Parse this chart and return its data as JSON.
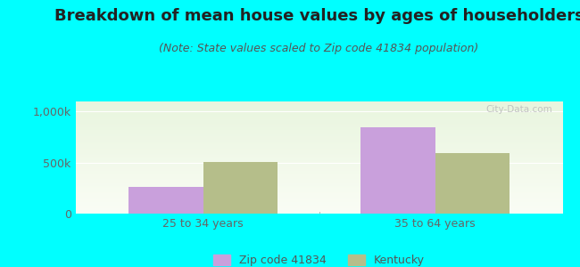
{
  "title": "Breakdown of mean house values by ages of householders",
  "subtitle": "(Note: State values scaled to Zip code 41834 population)",
  "background_color": "#00FFFF",
  "categories": [
    "25 to 34 years",
    "35 to 64 years"
  ],
  "zip_values": [
    260000,
    850000
  ],
  "state_values": [
    510000,
    590000
  ],
  "zip_color": "#c9a0dc",
  "state_color": "#b5be8a",
  "ylim": [
    0,
    1100000
  ],
  "ytick_vals": [
    0,
    500000,
    1000000
  ],
  "ytick_labels": [
    "0",
    "500k",
    "1,000k"
  ],
  "legend_zip_label": "Zip code 41834",
  "legend_state_label": "Kentucky",
  "bar_width": 0.32,
  "title_fontsize": 13,
  "subtitle_fontsize": 9,
  "tick_fontsize": 9,
  "legend_fontsize": 9,
  "watermark": "City-Data.com"
}
